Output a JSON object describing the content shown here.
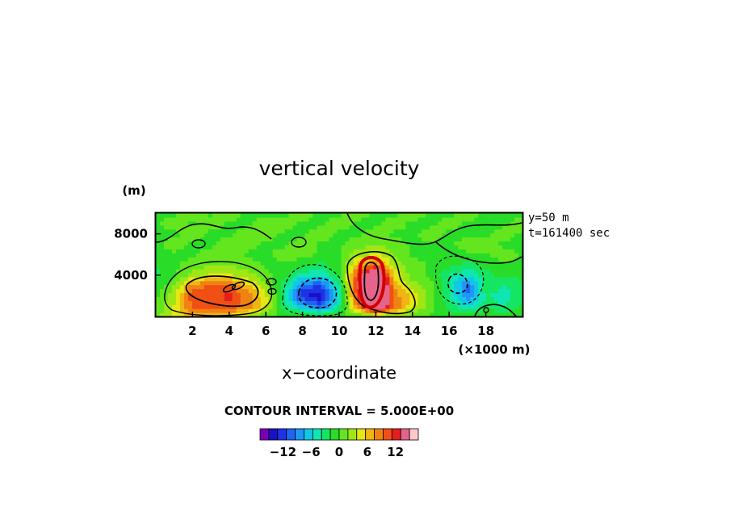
{
  "chart_data": {
    "type": "heatmap",
    "title": "vertical velocity",
    "xlabel": "x−coordinate",
    "x_unit_label": "(×1000 m)",
    "y_unit_label": "(m)",
    "xlim": [
      0,
      20
    ],
    "ylim": [
      0,
      10000
    ],
    "x_ticks": [
      2,
      4,
      6,
      8,
      10,
      12,
      14,
      16,
      18
    ],
    "x_tick_labels": [
      "2",
      "4",
      "6",
      "8",
      "10",
      "12",
      "14",
      "16",
      "18"
    ],
    "y_ticks": [
      4000,
      8000
    ],
    "y_tick_labels": [
      "4000",
      "8000"
    ],
    "annotation_lines": [
      "y=50 m",
      "t=161400 sec"
    ],
    "contour_interval_text": "CONTOUR INTERVAL = 5.000E+00",
    "colorbar": {
      "colors": [
        "#7a00b4",
        "#1a10c8",
        "#1e32e6",
        "#1e64f0",
        "#1e96fa",
        "#10c8e6",
        "#10e6b4",
        "#14e664",
        "#28dc28",
        "#64e61e",
        "#a0e614",
        "#e6e614",
        "#f0b414",
        "#f08214",
        "#f05014",
        "#e61e1e",
        "#e6648c",
        "#ffc8c8"
      ],
      "tick_values": [
        -12,
        -6,
        0,
        6,
        12
      ],
      "tick_labels": [
        "−12",
        "−6",
        "0",
        "6",
        "12"
      ]
    },
    "field_grid": {
      "x": [
        0,
        1,
        2,
        3,
        4,
        5,
        6,
        7,
        8,
        9,
        10,
        11,
        12,
        13,
        14,
        15,
        16,
        17,
        18,
        19,
        20
      ],
      "z": [
        0,
        1000,
        2000,
        3000,
        4000,
        5000,
        6000,
        7000,
        8000,
        9000,
        10000
      ],
      "w": [
        [
          2,
          4,
          6,
          6,
          5,
          3,
          1,
          0,
          0,
          0,
          0,
          0,
          1,
          2,
          1,
          0,
          0,
          0,
          0,
          0,
          0
        ],
        [
          0,
          4,
          9,
          9,
          10,
          8,
          4,
          -2,
          -6,
          -9,
          -3,
          8,
          18,
          9,
          4,
          1,
          -2,
          -5,
          -2,
          -3,
          -1
        ],
        [
          0,
          3,
          10,
          10,
          11,
          8,
          4,
          -3,
          -11,
          -13,
          -4,
          10,
          22,
          8,
          5,
          1,
          -3,
          -8,
          -3,
          -4,
          -2
        ],
        [
          -1,
          2,
          8,
          9,
          9,
          6,
          2,
          -2,
          -9,
          -10,
          -3,
          12,
          22,
          7,
          3,
          1,
          -3,
          -9,
          -2,
          -3,
          -2
        ],
        [
          -2,
          0,
          3,
          4,
          4,
          3,
          1,
          -1,
          -4,
          -5,
          -1,
          10,
          18,
          5,
          1,
          0,
          -3,
          -5,
          -2,
          -1,
          -1
        ],
        [
          -1,
          0,
          1,
          2,
          2,
          1,
          0,
          0,
          -1,
          -2,
          0,
          6,
          9,
          3,
          1,
          0,
          -1,
          -2,
          -1,
          0,
          0
        ],
        [
          0,
          0,
          0,
          1,
          1,
          0,
          0,
          1,
          1,
          0,
          0,
          3,
          4,
          2,
          0,
          0,
          0,
          0,
          0,
          1,
          0
        ],
        [
          0,
          1,
          0,
          0,
          1,
          1,
          0,
          0,
          1,
          0,
          0,
          1,
          2,
          1,
          0,
          0,
          0,
          1,
          1,
          0,
          0
        ],
        [
          0,
          0,
          1,
          0,
          0,
          1,
          1,
          0,
          0,
          1,
          0,
          0,
          1,
          0,
          0,
          1,
          0,
          0,
          0,
          1,
          0
        ],
        [
          0,
          1,
          0,
          1,
          0,
          0,
          1,
          1,
          0,
          0,
          1,
          0,
          0,
          1,
          0,
          0,
          1,
          0,
          0,
          0,
          1
        ],
        [
          0,
          0,
          1,
          0,
          1,
          0,
          0,
          0,
          1,
          0,
          0,
          1,
          0,
          0,
          1,
          0,
          0,
          1,
          0,
          0,
          0
        ]
      ]
    }
  }
}
